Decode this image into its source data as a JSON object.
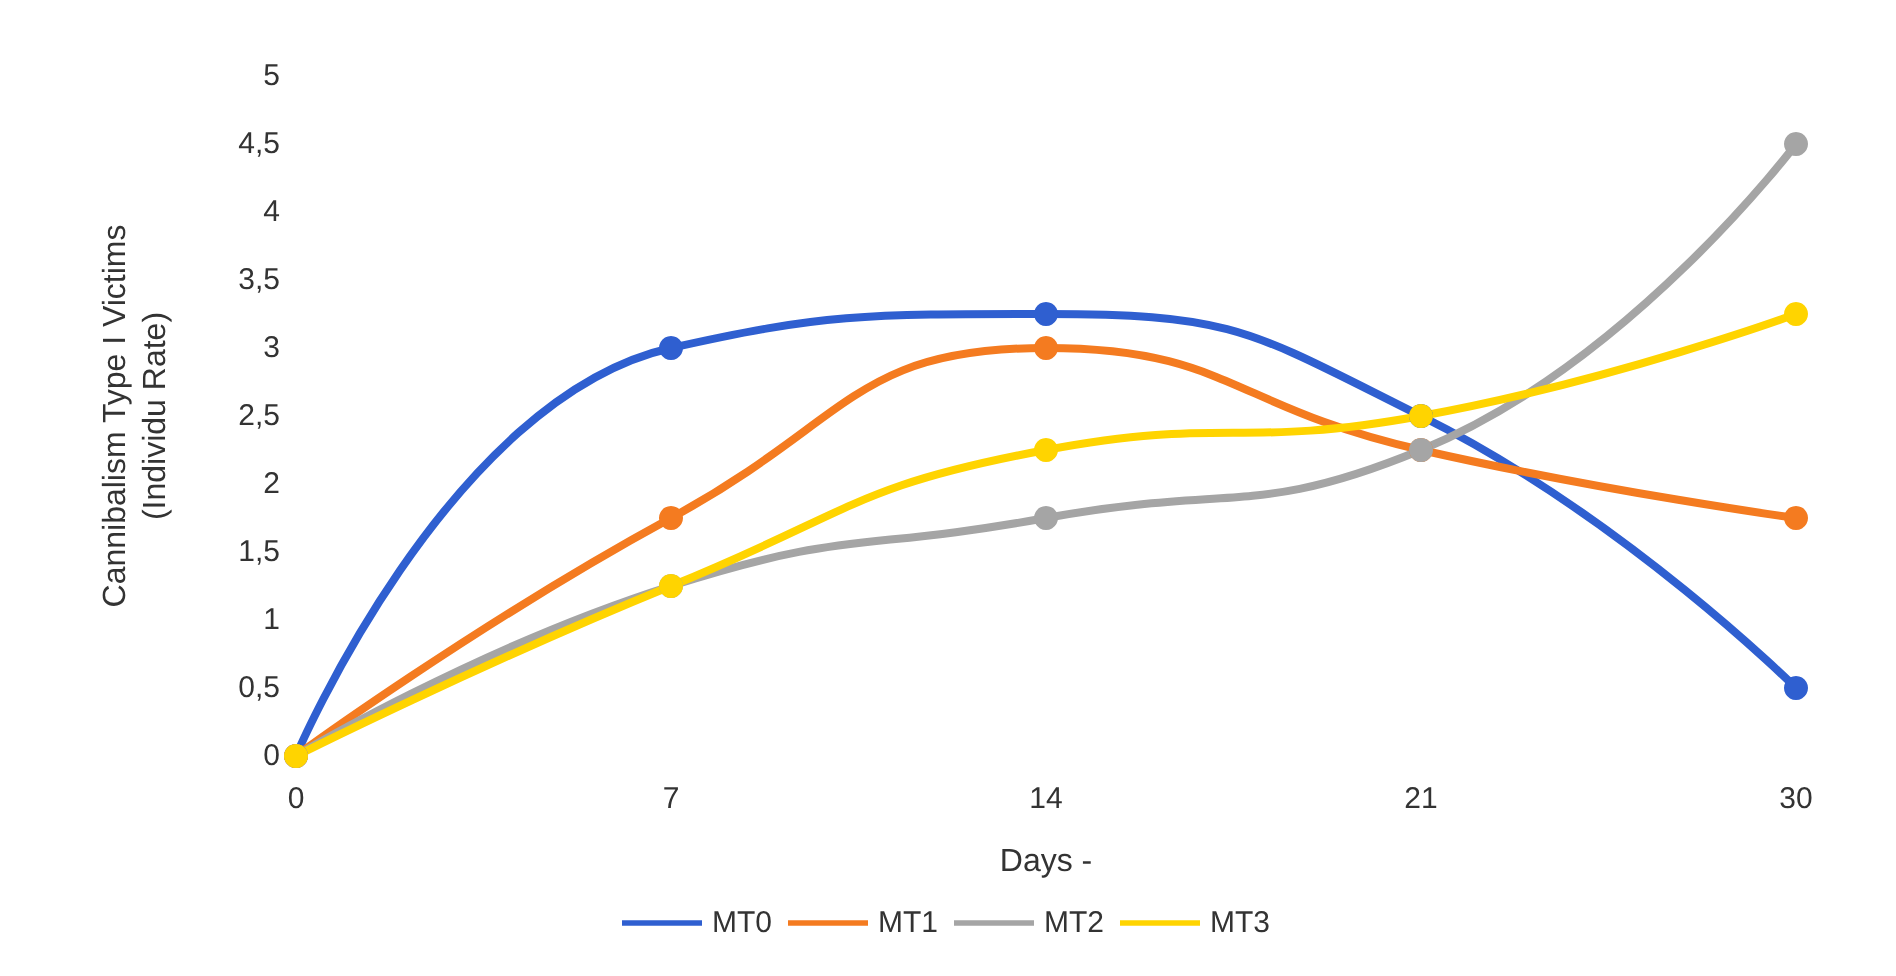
{
  "chart_data": {
    "type": "line",
    "xlabel": "Days -",
    "ylabel": "Cannibalism Type I Victims\n(Individu Rate)",
    "categories": [
      "0",
      "7",
      "14",
      "21",
      "30"
    ],
    "series": [
      {
        "name": "MT0",
        "color": "#2f5fd0",
        "values": [
          0,
          3,
          3.25,
          2.5,
          0.5
        ]
      },
      {
        "name": "MT1",
        "color": "#f47b20",
        "values": [
          0,
          1.75,
          3,
          2.25,
          1.75
        ]
      },
      {
        "name": "MT2",
        "color": "#a5a5a5",
        "values": [
          0,
          1.25,
          1.75,
          2.25,
          4.5
        ]
      },
      {
        "name": "MT3",
        "color": "#ffd400",
        "values": [
          0,
          1.25,
          2.25,
          2.5,
          3.25
        ]
      }
    ],
    "ylim": [
      0,
      5
    ],
    "yticks": [
      0,
      {
        "value": 0.5,
        "label": "0,5"
      },
      1,
      {
        "value": 1.5,
        "label": "1,5"
      },
      2,
      {
        "value": 2.5,
        "label": "2,5"
      },
      3,
      {
        "value": 3.5,
        "label": "3,5"
      },
      4,
      {
        "value": 4.5,
        "label": "4,5"
      },
      5
    ],
    "grid": false,
    "legend": "bottom",
    "marker": "circle",
    "line_style": "solid"
  }
}
